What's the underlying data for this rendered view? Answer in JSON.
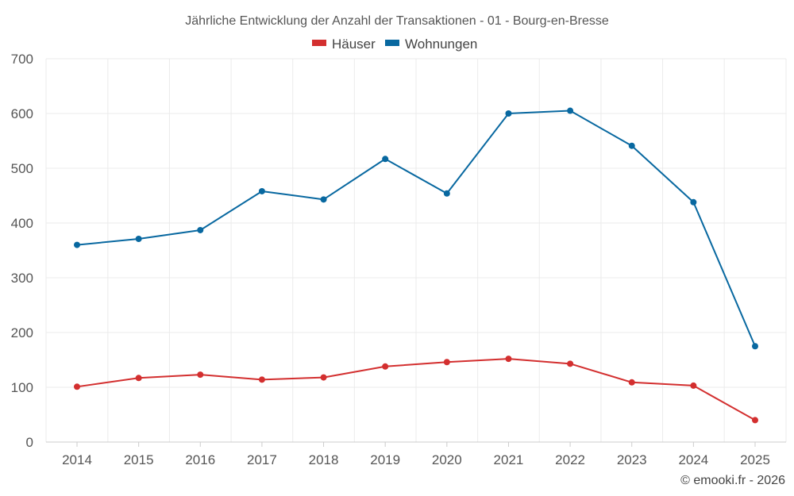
{
  "chart_data": {
    "type": "line",
    "title": "Jährliche Entwicklung der Anzahl der Transaktionen - 01 - Bourg-en-Bresse",
    "categories": [
      "2014",
      "2015",
      "2016",
      "2017",
      "2018",
      "2019",
      "2020",
      "2021",
      "2022",
      "2023",
      "2024",
      "2025"
    ],
    "series": [
      {
        "name": "Häuser",
        "color": "#d32f2f",
        "values": [
          101,
          117,
          123,
          114,
          118,
          138,
          146,
          152,
          143,
          109,
          103,
          40
        ]
      },
      {
        "name": "Wohnungen",
        "color": "#0868a0",
        "values": [
          360,
          371,
          387,
          458,
          443,
          517,
          454,
          600,
          605,
          541,
          438,
          175
        ]
      }
    ],
    "ylim": [
      0,
      700
    ],
    "yticks": [
      0,
      100,
      200,
      300,
      400,
      500,
      600,
      700
    ],
    "grid": true,
    "legend_position": "top-center",
    "xlabel": "",
    "ylabel": ""
  },
  "credit": "© emooki.fr - 2026"
}
